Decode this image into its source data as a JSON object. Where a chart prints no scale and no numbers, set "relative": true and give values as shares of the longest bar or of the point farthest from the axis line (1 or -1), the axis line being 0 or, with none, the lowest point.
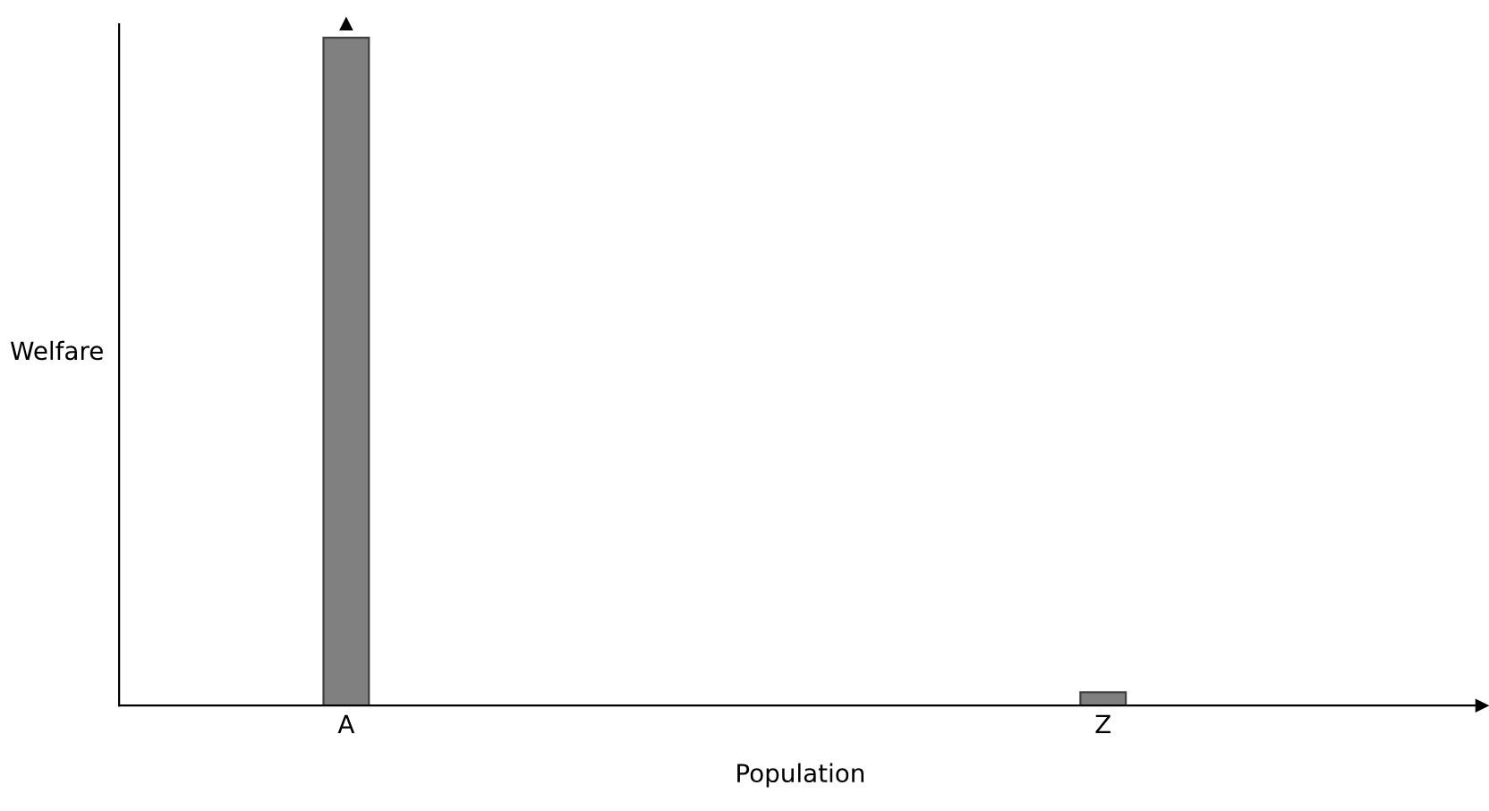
{
  "chart_data": {
    "type": "bar",
    "xlabel": "Population",
    "ylabel": "Welfare",
    "categories": [
      "A",
      "Z"
    ],
    "relative": true,
    "values": [
      1,
      0.02
    ],
    "color": "#808080",
    "grid": false,
    "legend": false
  }
}
